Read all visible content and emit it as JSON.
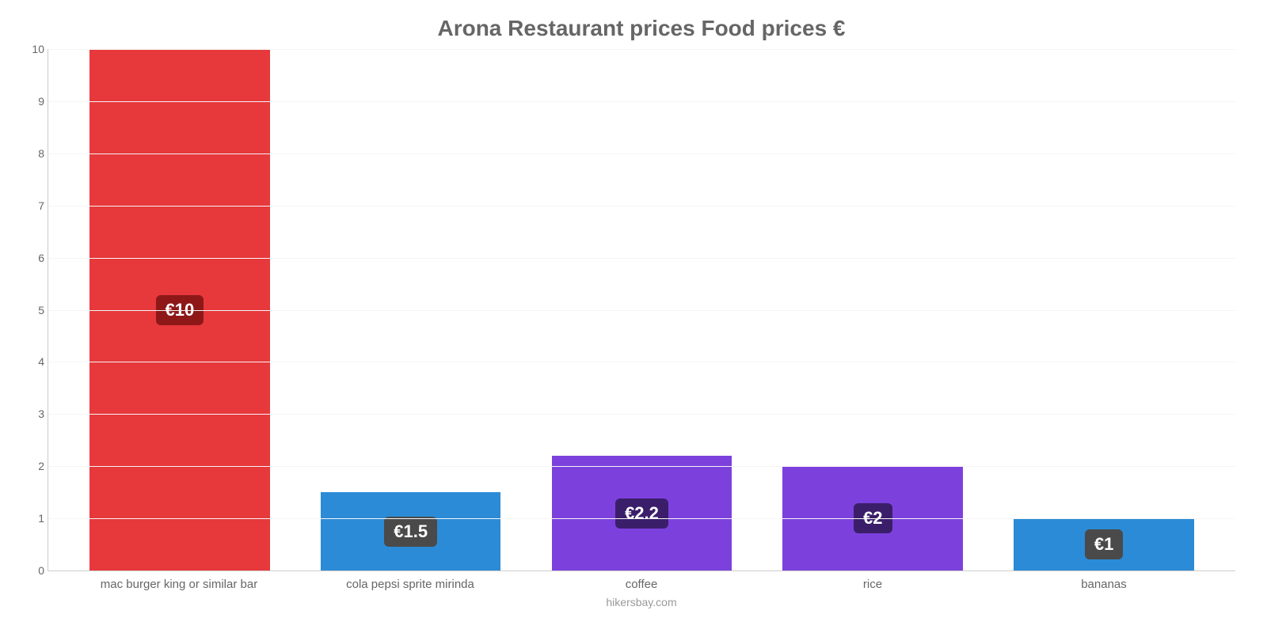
{
  "chart": {
    "type": "bar",
    "title": "Arona Restaurant prices Food prices €",
    "title_fontsize": 28,
    "title_color": "#666666",
    "attribution": "hikersbay.com",
    "background_color": "#ffffff",
    "grid_color": "#f5f5f5",
    "axis_color": "#cccccc",
    "tick_color": "#666666",
    "ylim": [
      0,
      10
    ],
    "ytick_step": 1,
    "yticks": [
      0,
      1,
      2,
      3,
      4,
      5,
      6,
      7,
      8,
      9,
      10
    ],
    "bar_width_pct": 78,
    "categories": [
      "mac burger king or similar bar",
      "cola pepsi sprite mirinda",
      "coffee",
      "rice",
      "bananas"
    ],
    "values": [
      10,
      1.5,
      2.2,
      2,
      1
    ],
    "value_labels": [
      "€10",
      "€1.5",
      "€2.2",
      "€2",
      "€1"
    ],
    "bar_colors": [
      "#e7383c",
      "#2b8bd6",
      "#7c41dd",
      "#7c41dd",
      "#2b8bd6"
    ],
    "label_bg_colors": [
      "#8e1818",
      "#4a4a4a",
      "#3b1e6a",
      "#3b1e6a",
      "#4a4a4a"
    ],
    "label_fontsize": 22,
    "xlabel_fontsize": 15
  }
}
